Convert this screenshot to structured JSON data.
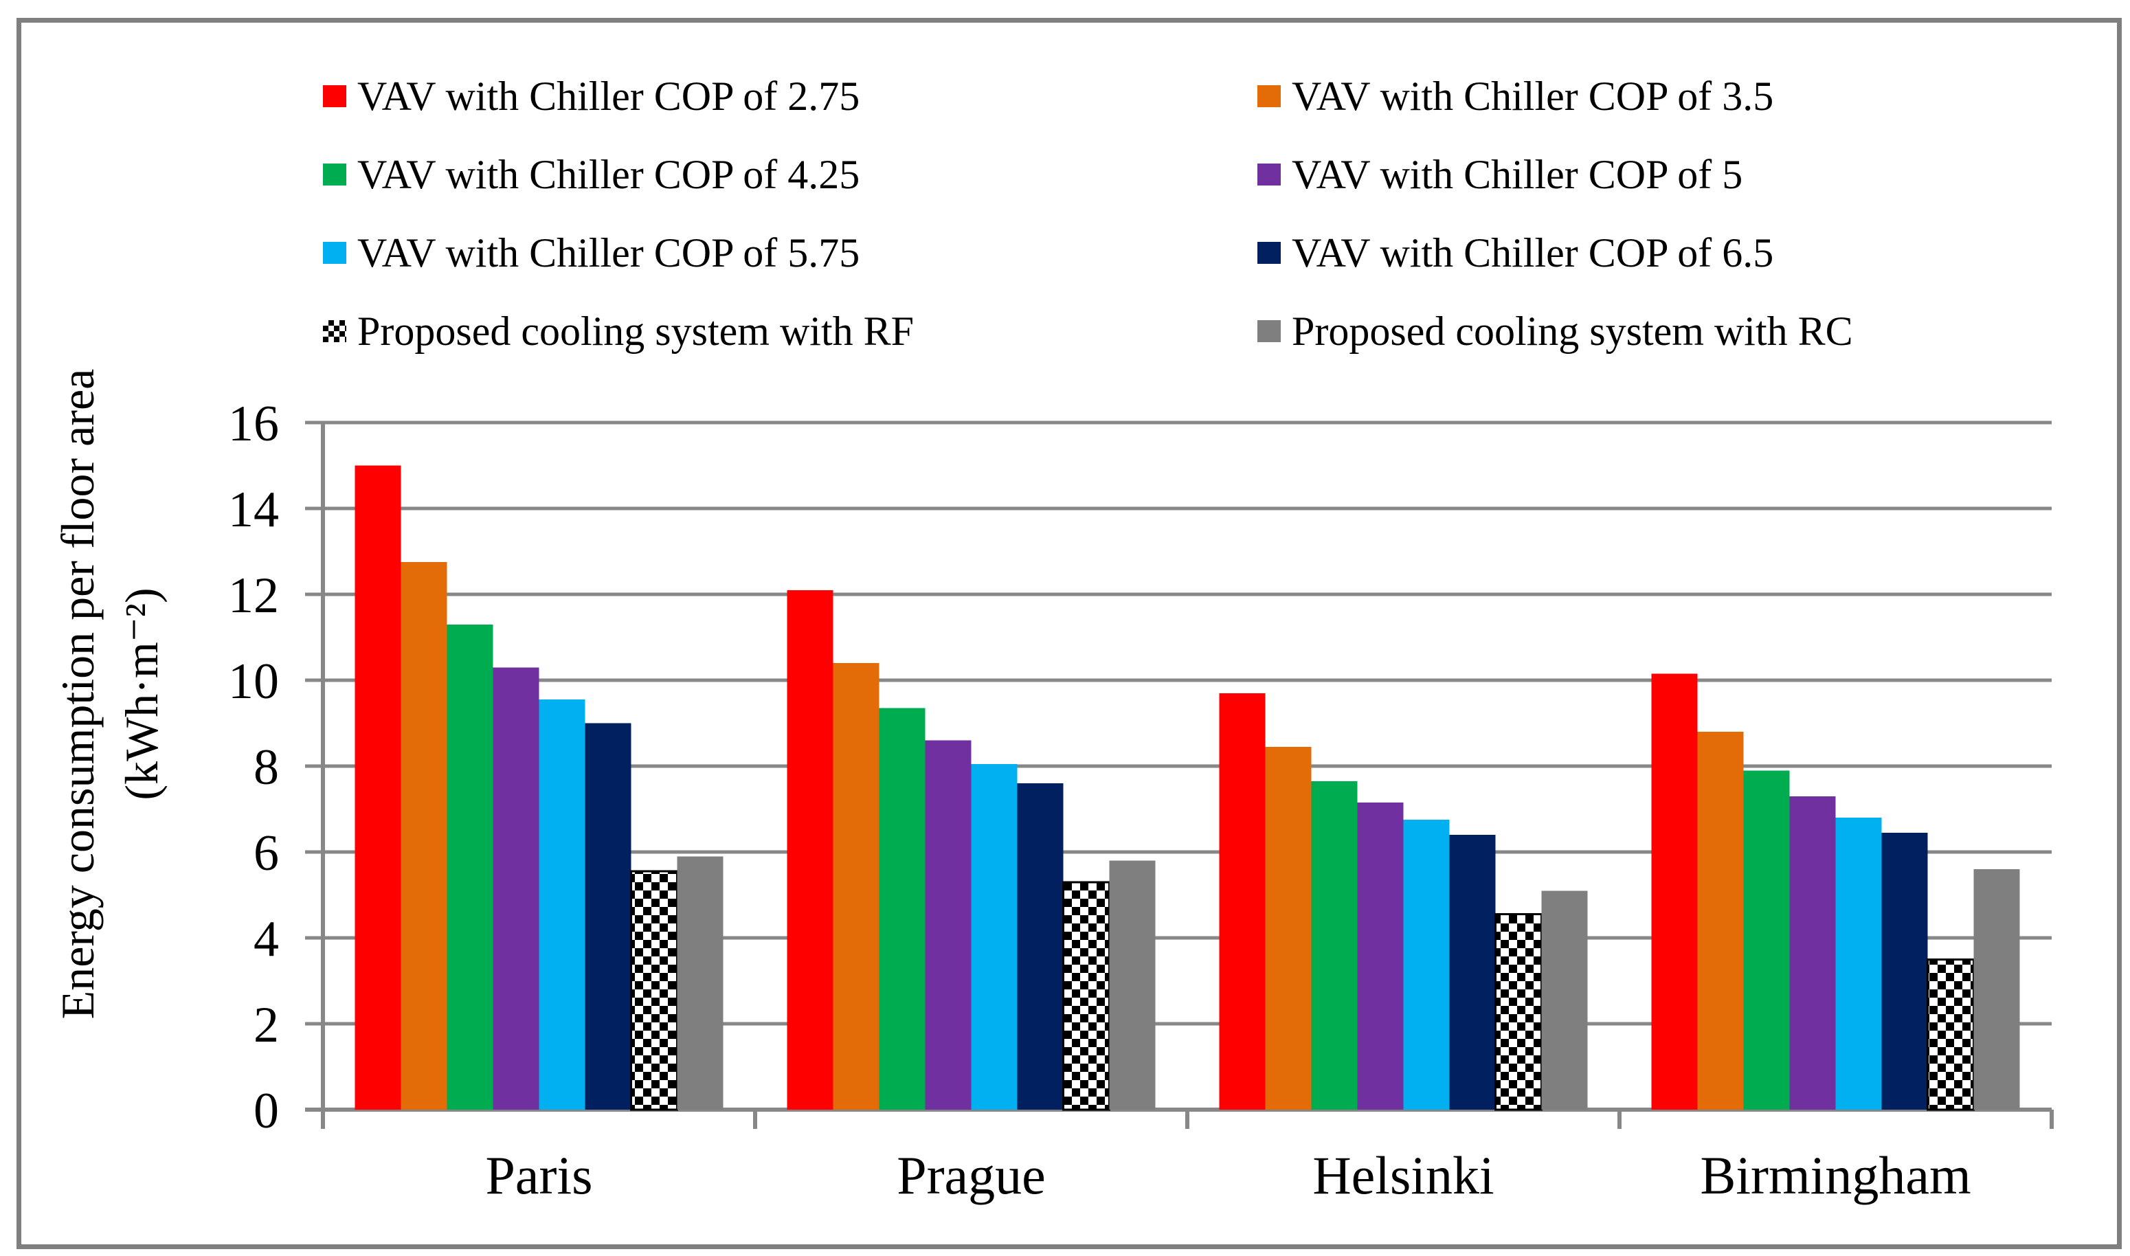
{
  "chart_data": {
    "type": "bar",
    "categories": [
      "Paris",
      "Prague",
      "Helsinki",
      "Birmingham"
    ],
    "series": [
      {
        "name": "VAV with Chiller COP of 2.75",
        "color": "#FF0000",
        "values": [
          15.0,
          12.1,
          9.7,
          10.15
        ]
      },
      {
        "name": "VAV with Chiller COP of 3.5",
        "color": "#E36C09",
        "values": [
          12.75,
          10.4,
          8.45,
          8.8
        ]
      },
      {
        "name": "VAV with Chiller COP of 4.25",
        "color": "#00AC50",
        "values": [
          11.3,
          9.35,
          7.65,
          7.9
        ]
      },
      {
        "name": "VAV with Chiller COP of 5",
        "color": "#7030A0",
        "values": [
          10.3,
          8.6,
          7.15,
          7.3
        ]
      },
      {
        "name": "VAV with Chiller COP of 5.75",
        "color": "#00B0F0",
        "values": [
          9.55,
          8.05,
          6.75,
          6.8
        ]
      },
      {
        "name": "VAV with Chiller COP of 6.5",
        "color": "#002060",
        "values": [
          9.0,
          7.6,
          6.4,
          6.45
        ]
      },
      {
        "name": "Proposed cooling system with RF",
        "color": "#000000",
        "pattern": "checker",
        "values": [
          5.55,
          5.3,
          4.55,
          3.5
        ]
      },
      {
        "name": "Proposed cooling system with RC",
        "color": "#7F7F7F",
        "values": [
          5.9,
          5.8,
          5.1,
          5.6
        ]
      }
    ],
    "title": "",
    "xlabel": "",
    "ylabel": "Energy consumption per floor area",
    "ylabel_unit": "(kWh·m⁻²)",
    "ylim": [
      0,
      16
    ],
    "yticks": [
      16,
      14,
      12,
      10,
      8,
      6,
      4,
      2,
      0
    ],
    "grid": true,
    "legend_position": "top"
  },
  "colors": {
    "grid": "#878787",
    "axis": "#878787",
    "frame": "#7F7F7F",
    "text": "#000000",
    "background": "#FFFFFF"
  }
}
